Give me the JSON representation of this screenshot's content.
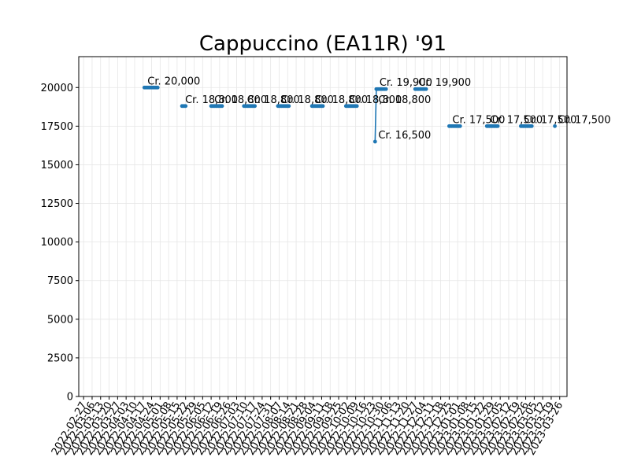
{
  "chart_data": {
    "type": "line",
    "title": "Cappuccino (EA11R) '91",
    "xlabel": "",
    "ylabel": "",
    "ylim": [
      0,
      22000
    ],
    "y_ticks": [
      0,
      2500,
      5000,
      7500,
      10000,
      12500,
      15000,
      17500,
      20000
    ],
    "x_range": [
      "2022-02-23",
      "2023-04-01"
    ],
    "x_ticks": [
      "2022-02-27",
      "2022-03-06",
      "2022-03-13",
      "2022-03-20",
      "2022-03-27",
      "2022-04-03",
      "2022-04-10",
      "2022-04-17",
      "2022-04-24",
      "2022-05-01",
      "2022-05-08",
      "2022-05-15",
      "2022-05-22",
      "2022-05-29",
      "2022-06-05",
      "2022-06-12",
      "2022-06-19",
      "2022-06-26",
      "2022-07-03",
      "2022-07-10",
      "2022-07-17",
      "2022-07-24",
      "2022-07-31",
      "2022-08-07",
      "2022-08-14",
      "2022-08-21",
      "2022-08-28",
      "2022-09-04",
      "2022-09-11",
      "2022-09-18",
      "2022-09-25",
      "2022-10-02",
      "2022-10-09",
      "2022-10-16",
      "2022-10-23",
      "2022-10-30",
      "2022-11-06",
      "2022-11-13",
      "2022-11-20",
      "2022-11-27",
      "2022-12-04",
      "2022-12-11",
      "2022-12-18",
      "2022-12-25",
      "2023-01-01",
      "2023-01-08",
      "2023-01-15",
      "2023-01-22",
      "2023-01-29",
      "2023-02-05",
      "2023-02-12",
      "2023-02-19",
      "2023-02-26",
      "2023-03-05",
      "2023-03-12",
      "2023-03-19",
      "2023-03-26"
    ],
    "grid": true,
    "series_color": "#1f77b4",
    "segments": [
      {
        "points": [
          [
            "2022-04-18",
            20000
          ],
          [
            "2022-04-19",
            20000
          ],
          [
            "2022-04-20",
            20000
          ],
          [
            "2022-04-21",
            20000
          ],
          [
            "2022-04-22",
            20000
          ],
          [
            "2022-04-23",
            20000
          ],
          [
            "2022-04-24",
            20000
          ],
          [
            "2022-04-25",
            20000
          ],
          [
            "2022-04-26",
            20000
          ],
          [
            "2022-04-27",
            20000
          ],
          [
            "2022-04-28",
            20000
          ],
          [
            "2022-04-29",
            20000
          ]
        ]
      },
      {
        "points": [
          [
            "2022-05-19",
            18800
          ],
          [
            "2022-05-20",
            18800
          ],
          [
            "2022-05-21",
            18800
          ],
          [
            "2022-05-22",
            18800
          ]
        ]
      },
      {
        "points": [
          [
            "2022-06-12",
            18800
          ],
          [
            "2022-06-13",
            18800
          ],
          [
            "2022-06-14",
            18800
          ],
          [
            "2022-06-15",
            18800
          ],
          [
            "2022-06-16",
            18800
          ],
          [
            "2022-06-17",
            18800
          ],
          [
            "2022-06-18",
            18800
          ],
          [
            "2022-06-19",
            18800
          ],
          [
            "2022-06-20",
            18800
          ],
          [
            "2022-06-21",
            18800
          ]
        ]
      },
      {
        "points": [
          [
            "2022-07-09",
            18800
          ],
          [
            "2022-07-10",
            18800
          ],
          [
            "2022-07-11",
            18800
          ],
          [
            "2022-07-12",
            18800
          ],
          [
            "2022-07-13",
            18800
          ],
          [
            "2022-07-14",
            18800
          ],
          [
            "2022-07-15",
            18800
          ],
          [
            "2022-07-16",
            18800
          ],
          [
            "2022-07-17",
            18800
          ],
          [
            "2022-07-18",
            18800
          ]
        ]
      },
      {
        "points": [
          [
            "2022-08-06",
            18800
          ],
          [
            "2022-08-07",
            18800
          ],
          [
            "2022-08-08",
            18800
          ],
          [
            "2022-08-09",
            18800
          ],
          [
            "2022-08-10",
            18800
          ],
          [
            "2022-08-11",
            18800
          ],
          [
            "2022-08-12",
            18800
          ],
          [
            "2022-08-13",
            18800
          ],
          [
            "2022-08-14",
            18800
          ],
          [
            "2022-08-15",
            18800
          ]
        ]
      },
      {
        "points": [
          [
            "2022-09-03",
            18800
          ],
          [
            "2022-09-04",
            18800
          ],
          [
            "2022-09-05",
            18800
          ],
          [
            "2022-09-06",
            18800
          ],
          [
            "2022-09-07",
            18800
          ],
          [
            "2022-09-08",
            18800
          ],
          [
            "2022-09-09",
            18800
          ],
          [
            "2022-09-10",
            18800
          ],
          [
            "2022-09-11",
            18800
          ],
          [
            "2022-09-12",
            18800
          ]
        ]
      },
      {
        "points": [
          [
            "2022-10-01",
            18800
          ],
          [
            "2022-10-02",
            18800
          ],
          [
            "2022-10-03",
            18800
          ],
          [
            "2022-10-04",
            18800
          ],
          [
            "2022-10-05",
            18800
          ],
          [
            "2022-10-06",
            18800
          ],
          [
            "2022-10-07",
            18800
          ],
          [
            "2022-10-08",
            18800
          ],
          [
            "2022-10-09",
            18800
          ],
          [
            "2022-10-10",
            18800
          ]
        ]
      },
      {
        "points": [
          [
            "2022-10-25",
            16500
          ],
          [
            "2022-10-26",
            19900
          ],
          [
            "2022-10-27",
            19900
          ],
          [
            "2022-10-28",
            19900
          ],
          [
            "2022-10-29",
            19900
          ],
          [
            "2022-10-30",
            19900
          ],
          [
            "2022-10-31",
            19900
          ],
          [
            "2022-11-01",
            19900
          ],
          [
            "2022-11-02",
            19900
          ],
          [
            "2022-11-03",
            19900
          ]
        ]
      },
      {
        "points": [
          [
            "2022-11-27",
            19900
          ],
          [
            "2022-11-28",
            19900
          ],
          [
            "2022-11-29",
            19900
          ],
          [
            "2022-11-30",
            19900
          ],
          [
            "2022-12-01",
            19900
          ],
          [
            "2022-12-02",
            19900
          ],
          [
            "2022-12-03",
            19900
          ],
          [
            "2022-12-04",
            19900
          ],
          [
            "2022-12-05",
            19900
          ],
          [
            "2022-12-06",
            19900
          ]
        ]
      },
      {
        "points": [
          [
            "2022-12-25",
            17500
          ],
          [
            "2022-12-26",
            17500
          ],
          [
            "2022-12-27",
            17500
          ],
          [
            "2022-12-28",
            17500
          ],
          [
            "2022-12-29",
            17500
          ],
          [
            "2022-12-30",
            17500
          ],
          [
            "2022-12-31",
            17500
          ],
          [
            "2023-01-01",
            17500
          ],
          [
            "2023-01-02",
            17500
          ],
          [
            "2023-01-03",
            17500
          ]
        ]
      },
      {
        "points": [
          [
            "2023-01-25",
            17500
          ],
          [
            "2023-01-26",
            17500
          ],
          [
            "2023-01-27",
            17500
          ],
          [
            "2023-01-28",
            17500
          ],
          [
            "2023-01-29",
            17500
          ],
          [
            "2023-01-30",
            17500
          ],
          [
            "2023-01-31",
            17500
          ],
          [
            "2023-02-01",
            17500
          ],
          [
            "2023-02-02",
            17500
          ],
          [
            "2023-02-03",
            17500
          ]
        ]
      },
      {
        "points": [
          [
            "2023-02-22",
            17500
          ],
          [
            "2023-02-23",
            17500
          ],
          [
            "2023-02-24",
            17500
          ],
          [
            "2023-02-25",
            17500
          ],
          [
            "2023-02-26",
            17500
          ],
          [
            "2023-02-27",
            17500
          ],
          [
            "2023-02-28",
            17500
          ],
          [
            "2023-03-01",
            17500
          ],
          [
            "2023-03-02",
            17500
          ],
          [
            "2023-03-03",
            17500
          ]
        ]
      },
      {
        "points": [
          [
            "2023-03-22",
            17500
          ]
        ]
      }
    ],
    "annotations": [
      {
        "text": "Cr. 20,000",
        "x": "2022-04-18",
        "y": 20000
      },
      {
        "text": "Cr. 18,800",
        "x": "2022-05-19",
        "y": 18800
      },
      {
        "text": "Cr. 18,800",
        "x": "2022-06-12",
        "y": 18800
      },
      {
        "text": "Cr. 18,800",
        "x": "2022-07-09",
        "y": 18800
      },
      {
        "text": "Cr. 18,800",
        "x": "2022-08-06",
        "y": 18800
      },
      {
        "text": "Cr. 18,800",
        "x": "2022-09-03",
        "y": 18800
      },
      {
        "text": "Cr. 18,800",
        "x": "2022-10-01",
        "y": 18800
      },
      {
        "text": "Cr. 18,800",
        "x": "2022-10-25",
        "y": 18800
      },
      {
        "text": "Cr. 16,500",
        "x": "2022-10-25",
        "y": 16500
      },
      {
        "text": "Cr. 19,900",
        "x": "2022-10-26",
        "y": 19900
      },
      {
        "text": "Cr. 19,900",
        "x": "2022-11-27",
        "y": 19900
      },
      {
        "text": "Cr. 17,500",
        "x": "2022-12-25",
        "y": 17500
      },
      {
        "text": "Cr. 17,500",
        "x": "2023-01-25",
        "y": 17500
      },
      {
        "text": "Cr. 17,500",
        "x": "2023-02-22",
        "y": 17500
      },
      {
        "text": "Cr. 17,500",
        "x": "2023-03-22",
        "y": 17500
      }
    ]
  }
}
